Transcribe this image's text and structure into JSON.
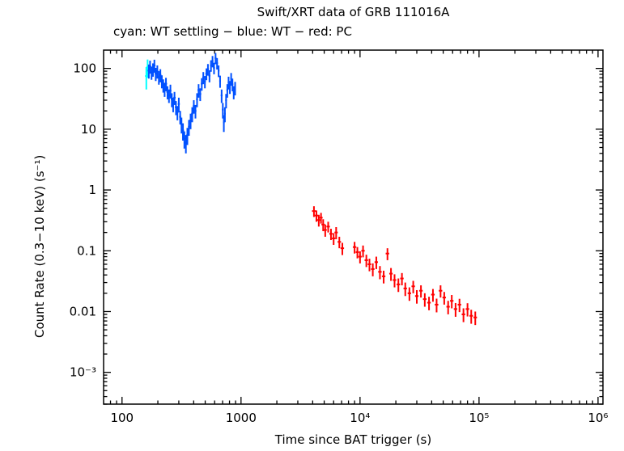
{
  "title": "Swift/XRT data of GRB 111016A",
  "subtitle": "cyan: WT settling − blue: WT − red: PC",
  "chart_data": {
    "type": "scatter",
    "title": "Swift/XRT data of GRB 111016A",
    "subtitle": "cyan: WT settling − blue: WT − red: PC",
    "xlabel": "Time since BAT trigger (s)",
    "ylabel": "Count Rate (0.3−10 keV) (s⁻¹)",
    "x_scale": "log",
    "y_scale": "log",
    "xlim": [
      70,
      1100000
    ],
    "ylim": [
      0.0003,
      200
    ],
    "grid": false,
    "x_ticks": [
      {
        "v": 100,
        "label": "100"
      },
      {
        "v": 1000,
        "label": "1000"
      },
      {
        "v": 10000,
        "label": "10⁴"
      },
      {
        "v": 100000,
        "label": "10⁵"
      },
      {
        "v": 1000000,
        "label": "10⁶"
      }
    ],
    "y_ticks": [
      {
        "v": 0.001,
        "label": "10⁻³"
      },
      {
        "v": 0.01,
        "label": "0.01"
      },
      {
        "v": 0.1,
        "label": "0.1"
      },
      {
        "v": 1,
        "label": "1"
      },
      {
        "v": 10,
        "label": "10"
      },
      {
        "v": 100,
        "label": "100"
      }
    ],
    "legend": [
      {
        "label": "WT settling",
        "color": "#00ffff"
      },
      {
        "label": "WT",
        "color": "#0050ff"
      },
      {
        "label": "PC",
        "color": "#ff0000"
      }
    ],
    "series": [
      {
        "name": "wt-settling",
        "color": "#00ffff",
        "points": [
          [
            160,
            4,
            75,
            30
          ],
          [
            164,
            4,
            105,
            35
          ]
        ]
      },
      {
        "name": "wt",
        "color": "#0050ff",
        "points": [
          [
            168,
            4,
            92,
            24
          ],
          [
            172,
            4,
            108,
            26
          ],
          [
            177,
            4,
            86,
            21
          ],
          [
            182,
            4,
            97,
            24
          ],
          [
            187,
            4,
            112,
            27
          ],
          [
            192,
            4,
            82,
            20
          ],
          [
            198,
            4,
            90,
            22
          ],
          [
            204,
            4,
            72,
            18
          ],
          [
            210,
            4,
            78,
            19
          ],
          [
            216,
            4,
            62,
            15
          ],
          [
            222,
            5,
            53,
            13
          ],
          [
            228,
            5,
            46,
            12
          ],
          [
            234,
            5,
            56,
            14
          ],
          [
            241,
            5,
            41,
            10
          ],
          [
            248,
            5,
            36,
            9
          ],
          [
            255,
            5,
            43,
            11
          ],
          [
            262,
            5,
            31,
            8
          ],
          [
            269,
            5,
            26,
            7
          ],
          [
            276,
            6,
            33,
            8
          ],
          [
            284,
            6,
            23,
            6
          ],
          [
            292,
            6,
            19,
            5
          ],
          [
            300,
            6,
            26,
            7
          ],
          [
            308,
            6,
            16,
            4
          ],
          [
            316,
            6,
            12,
            3.5
          ],
          [
            325,
            7,
            9.5,
            3
          ],
          [
            334,
            7,
            7,
            2.2
          ],
          [
            344,
            7,
            6,
            2
          ],
          [
            354,
            7,
            8,
            2.5
          ],
          [
            365,
            7,
            11,
            3.2
          ],
          [
            377,
            8,
            14,
            4
          ],
          [
            389,
            8,
            18,
            5
          ],
          [
            401,
            8,
            24,
            6
          ],
          [
            414,
            8,
            20,
            5
          ],
          [
            427,
            8,
            31,
            8
          ],
          [
            440,
            9,
            44,
            11
          ],
          [
            454,
            9,
            38,
            9
          ],
          [
            468,
            9,
            56,
            13
          ],
          [
            482,
            9,
            71,
            16
          ],
          [
            497,
            9,
            61,
            14
          ],
          [
            512,
            10,
            82,
            18
          ],
          [
            527,
            10,
            97,
            21
          ],
          [
            543,
            10,
            76,
            17
          ],
          [
            559,
            10,
            112,
            24
          ],
          [
            576,
            10,
            132,
            28
          ],
          [
            593,
            11,
            102,
            22
          ],
          [
            611,
            11,
            148,
            31
          ],
          [
            629,
            11,
            122,
            26
          ],
          [
            648,
            11,
            92,
            20
          ],
          [
            667,
            11,
            62,
            14
          ],
          [
            687,
            12,
            36,
            9
          ],
          [
            703,
            12,
            21,
            6
          ],
          [
            717,
            12,
            13,
            4
          ],
          [
            732,
            12,
            18,
            5
          ],
          [
            749,
            12,
            30,
            8
          ],
          [
            767,
            13,
            44,
            11
          ],
          [
            786,
            13,
            59,
            14
          ],
          [
            806,
            13,
            50,
            12
          ],
          [
            826,
            13,
            68,
            16
          ],
          [
            847,
            14,
            55,
            13
          ],
          [
            868,
            14,
            41,
            10
          ],
          [
            892,
            14,
            48,
            12
          ]
        ]
      },
      {
        "name": "pc",
        "color": "#ff0000",
        "points": [
          [
            4100,
            150,
            0.45,
            0.09
          ],
          [
            4300,
            150,
            0.38,
            0.08
          ],
          [
            4500,
            150,
            0.32,
            0.07
          ],
          [
            4700,
            150,
            0.35,
            0.07
          ],
          [
            4900,
            160,
            0.27,
            0.06
          ],
          [
            5100,
            160,
            0.22,
            0.05
          ],
          [
            5400,
            180,
            0.25,
            0.05
          ],
          [
            5700,
            180,
            0.19,
            0.04
          ],
          [
            6000,
            200,
            0.16,
            0.035
          ],
          [
            6300,
            200,
            0.2,
            0.045
          ],
          [
            6700,
            220,
            0.14,
            0.03
          ],
          [
            7100,
            240,
            0.11,
            0.025
          ],
          [
            9000,
            300,
            0.115,
            0.025
          ],
          [
            9500,
            300,
            0.095,
            0.02
          ],
          [
            10000,
            330,
            0.08,
            0.018
          ],
          [
            10600,
            350,
            0.1,
            0.022
          ],
          [
            11300,
            380,
            0.07,
            0.016
          ],
          [
            12000,
            400,
            0.06,
            0.014
          ],
          [
            12800,
            430,
            0.05,
            0.012
          ],
          [
            13700,
            450,
            0.065,
            0.015
          ],
          [
            14700,
            500,
            0.045,
            0.011
          ],
          [
            15800,
            530,
            0.038,
            0.009
          ],
          [
            17000,
            570,
            0.09,
            0.02
          ],
          [
            18200,
            600,
            0.042,
            0.01
          ],
          [
            19500,
            650,
            0.033,
            0.008
          ],
          [
            21000,
            700,
            0.028,
            0.007
          ],
          [
            22500,
            750,
            0.035,
            0.008
          ],
          [
            24000,
            800,
            0.024,
            0.006
          ],
          [
            26000,
            870,
            0.02,
            0.005
          ],
          [
            28000,
            930,
            0.026,
            0.006
          ],
          [
            30000,
            1000,
            0.018,
            0.0045
          ],
          [
            32500,
            1100,
            0.022,
            0.005
          ],
          [
            35000,
            1200,
            0.016,
            0.004
          ],
          [
            38000,
            1300,
            0.014,
            0.0035
          ],
          [
            41000,
            1400,
            0.019,
            0.0045
          ],
          [
            44000,
            1500,
            0.013,
            0.0033
          ],
          [
            47500,
            1600,
            0.022,
            0.005
          ],
          [
            51000,
            1700,
            0.017,
            0.004
          ],
          [
            55000,
            1800,
            0.012,
            0.003
          ],
          [
            59000,
            2000,
            0.015,
            0.0037
          ],
          [
            63500,
            2100,
            0.011,
            0.0028
          ],
          [
            68500,
            2300,
            0.013,
            0.0032
          ],
          [
            74000,
            2500,
            0.009,
            0.0023
          ],
          [
            80000,
            2700,
            0.011,
            0.0027
          ],
          [
            86000,
            2900,
            0.0085,
            0.0022
          ],
          [
            93000,
            3100,
            0.008,
            0.002
          ]
        ]
      }
    ]
  }
}
